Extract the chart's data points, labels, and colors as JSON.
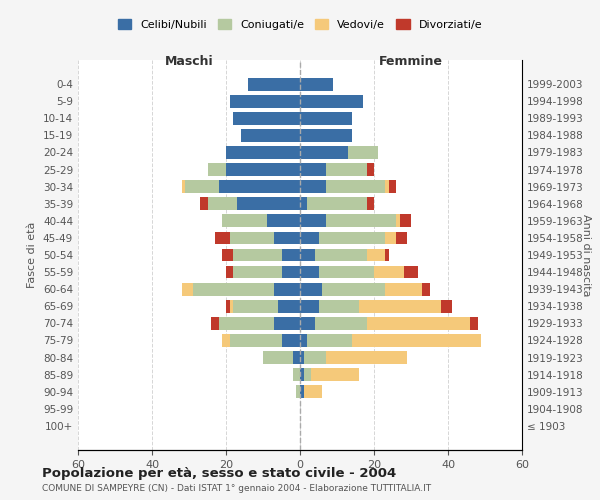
{
  "age_groups": [
    "100+",
    "95-99",
    "90-94",
    "85-89",
    "80-84",
    "75-79",
    "70-74",
    "65-69",
    "60-64",
    "55-59",
    "50-54",
    "45-49",
    "40-44",
    "35-39",
    "30-34",
    "25-29",
    "20-24",
    "15-19",
    "10-14",
    "5-9",
    "0-4"
  ],
  "birth_years": [
    "≤ 1903",
    "1904-1908",
    "1909-1913",
    "1914-1918",
    "1919-1923",
    "1924-1928",
    "1929-1933",
    "1934-1938",
    "1939-1943",
    "1944-1948",
    "1949-1953",
    "1954-1958",
    "1959-1963",
    "1964-1968",
    "1969-1973",
    "1974-1978",
    "1979-1983",
    "1984-1988",
    "1989-1993",
    "1994-1998",
    "1999-2003"
  ],
  "males": {
    "celibi": [
      0,
      0,
      0,
      0,
      2,
      5,
      7,
      6,
      7,
      5,
      5,
      7,
      9,
      17,
      22,
      20,
      20,
      16,
      18,
      19,
      14
    ],
    "coniugati": [
      0,
      0,
      1,
      2,
      8,
      14,
      15,
      12,
      22,
      13,
      13,
      12,
      12,
      8,
      9,
      5,
      0,
      0,
      0,
      0,
      0
    ],
    "vedovi": [
      0,
      0,
      0,
      0,
      0,
      2,
      0,
      1,
      3,
      0,
      0,
      0,
      0,
      0,
      1,
      0,
      0,
      0,
      0,
      0,
      0
    ],
    "divorziati": [
      0,
      0,
      0,
      0,
      0,
      0,
      2,
      1,
      0,
      2,
      3,
      4,
      0,
      2,
      0,
      0,
      0,
      0,
      0,
      0,
      0
    ]
  },
  "females": {
    "nubili": [
      0,
      0,
      1,
      1,
      1,
      2,
      4,
      5,
      6,
      5,
      4,
      5,
      7,
      2,
      7,
      7,
      13,
      14,
      14,
      17,
      9
    ],
    "coniugate": [
      0,
      0,
      0,
      2,
      6,
      12,
      14,
      11,
      17,
      15,
      14,
      18,
      19,
      16,
      16,
      11,
      8,
      0,
      0,
      0,
      0
    ],
    "vedove": [
      0,
      0,
      5,
      13,
      22,
      35,
      28,
      22,
      10,
      8,
      5,
      3,
      1,
      0,
      1,
      0,
      0,
      0,
      0,
      0,
      0
    ],
    "divorziate": [
      0,
      0,
      0,
      0,
      0,
      0,
      2,
      3,
      2,
      4,
      1,
      3,
      3,
      2,
      2,
      2,
      0,
      0,
      0,
      0,
      0
    ]
  },
  "colors": {
    "celibi": "#3A6EA5",
    "coniugati": "#B5C9A0",
    "vedovi": "#F5C97A",
    "divorziati": "#C0392B"
  },
  "xlim": 60,
  "title": "Popolazione per età, sesso e stato civile - 2004",
  "subtitle": "COMUNE DI SAMPEYRE (CN) - Dati ISTAT 1° gennaio 2004 - Elaborazione TUTTITALIA.IT",
  "ylabel_left": "Fasce di età",
  "ylabel_right": "Anni di nascita",
  "xlabel_left": "Maschi",
  "xlabel_right": "Femmine",
  "legend_labels": [
    "Celibi/Nubili",
    "Coniugati/e",
    "Vedovi/e",
    "Divorziati/e"
  ],
  "bg_color": "#f5f5f5",
  "plot_bg_color": "#ffffff"
}
